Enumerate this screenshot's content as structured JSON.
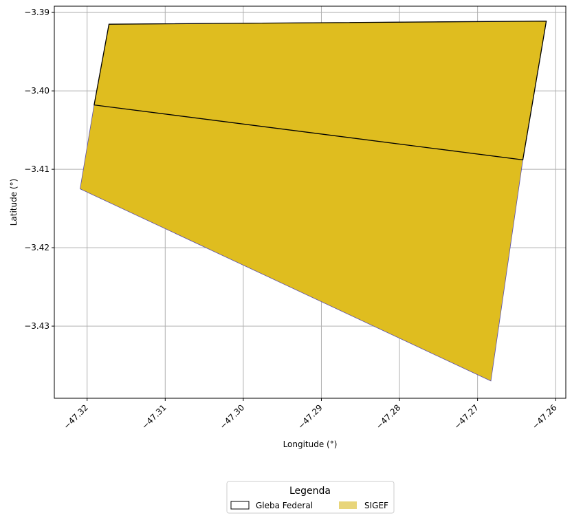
{
  "chart_data": {
    "type": "map",
    "xlabel": "Longitude (°)",
    "ylabel": "Latitude (°)",
    "xlim": [
      -47.3242,
      -47.2587
    ],
    "ylim": [
      -3.4392,
      -3.3892
    ],
    "x_ticks": [
      {
        "value": -47.32,
        "label": "−47.32"
      },
      {
        "value": -47.31,
        "label": "−47.31"
      },
      {
        "value": -47.3,
        "label": "−47.30"
      },
      {
        "value": -47.29,
        "label": "−47.29"
      },
      {
        "value": -47.28,
        "label": "−47.28"
      },
      {
        "value": -47.27,
        "label": "−47.27"
      },
      {
        "value": -47.26,
        "label": "−47.26"
      }
    ],
    "y_ticks": [
      {
        "value": -3.39,
        "label": "−3.39"
      },
      {
        "value": -3.4,
        "label": "−3.40"
      },
      {
        "value": -3.41,
        "label": "−3.41"
      },
      {
        "value": -3.42,
        "label": "−3.42"
      },
      {
        "value": -3.43,
        "label": "−3.43"
      }
    ],
    "grid": true,
    "colors": {
      "sigef_fill": "#dfbd1f",
      "sigef_edge": "#5a4fb0",
      "gleba_edge": "#000000",
      "legend_sigef_patch": "#e8d57a",
      "grid": "#b0b0b0"
    },
    "layers": [
      {
        "name": "SIGEF",
        "polygons": [
          [
            [
              -47.3172,
              -3.3915
            ],
            [
              -47.2612,
              -3.3911
            ],
            [
              -47.2642,
              -3.4088
            ],
            [
              -47.2683,
              -3.437
            ],
            [
              -47.3209,
              -3.4125
            ],
            [
              -47.3191,
              -3.4018
            ]
          ],
          [
            [
              -47.3191,
              -3.4018
            ],
            [
              -47.3172,
              -3.3915
            ],
            [
              -47.2612,
              -3.3911
            ],
            [
              -47.2642,
              -3.4088
            ]
          ]
        ]
      },
      {
        "name": "Gleba Federal",
        "polygons": [
          [
            [
              -47.3191,
              -3.4018
            ],
            [
              -47.3172,
              -3.3915
            ],
            [
              -47.2612,
              -3.3911
            ],
            [
              -47.2642,
              -3.4088
            ]
          ]
        ]
      }
    ],
    "legend": {
      "title": "Legenda",
      "placement": "bottom-center",
      "entries": [
        "Gleba Federal",
        "SIGEF"
      ]
    }
  }
}
